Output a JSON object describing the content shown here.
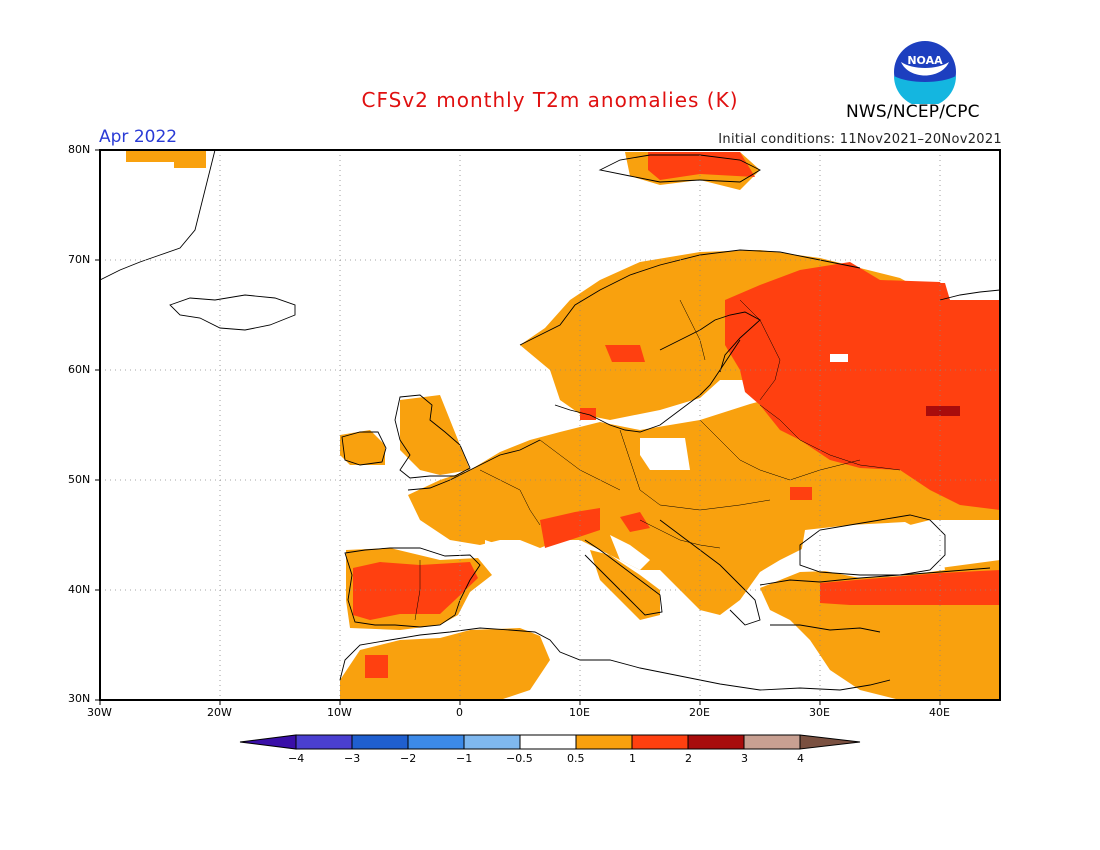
{
  "title": "CFSv2 monthly T2m anomalies (K)",
  "period": "Apr 2022",
  "initial_conditions": "Initial conditions: 11Nov2021–20Nov2021",
  "organization": "NWS/NCEP/CPC",
  "logo_text": "NOAA",
  "map": {
    "extent": {
      "lon_min": -30,
      "lon_max": 45,
      "lat_min": 30,
      "lat_max": 80
    },
    "lat_labels": [
      "80N",
      "70N",
      "60N",
      "50N",
      "40N",
      "30N"
    ],
    "lon_labels": [
      "30W",
      "20W",
      "10W",
      "0",
      "10E",
      "20E",
      "30E",
      "40E"
    ]
  },
  "colorbar": {
    "colors": [
      "#3a0fa8",
      "#4a3fd0",
      "#1f5fcf",
      "#3c8ae8",
      "#7fb8ef",
      "#ffffff",
      "#f9a10e",
      "#ff4010",
      "#a80c0c",
      "#c8a092",
      "#7a5040"
    ],
    "labels": [
      "−4",
      "−3",
      "−2",
      "−1",
      "−0.5",
      "0.5",
      "1",
      "2",
      "3",
      "4"
    ]
  },
  "colors": {
    "orange": "#f9a10e",
    "red": "#ff4010",
    "darkred": "#a80c0c",
    "title": "#e01010",
    "period": "#2a3bd6"
  }
}
